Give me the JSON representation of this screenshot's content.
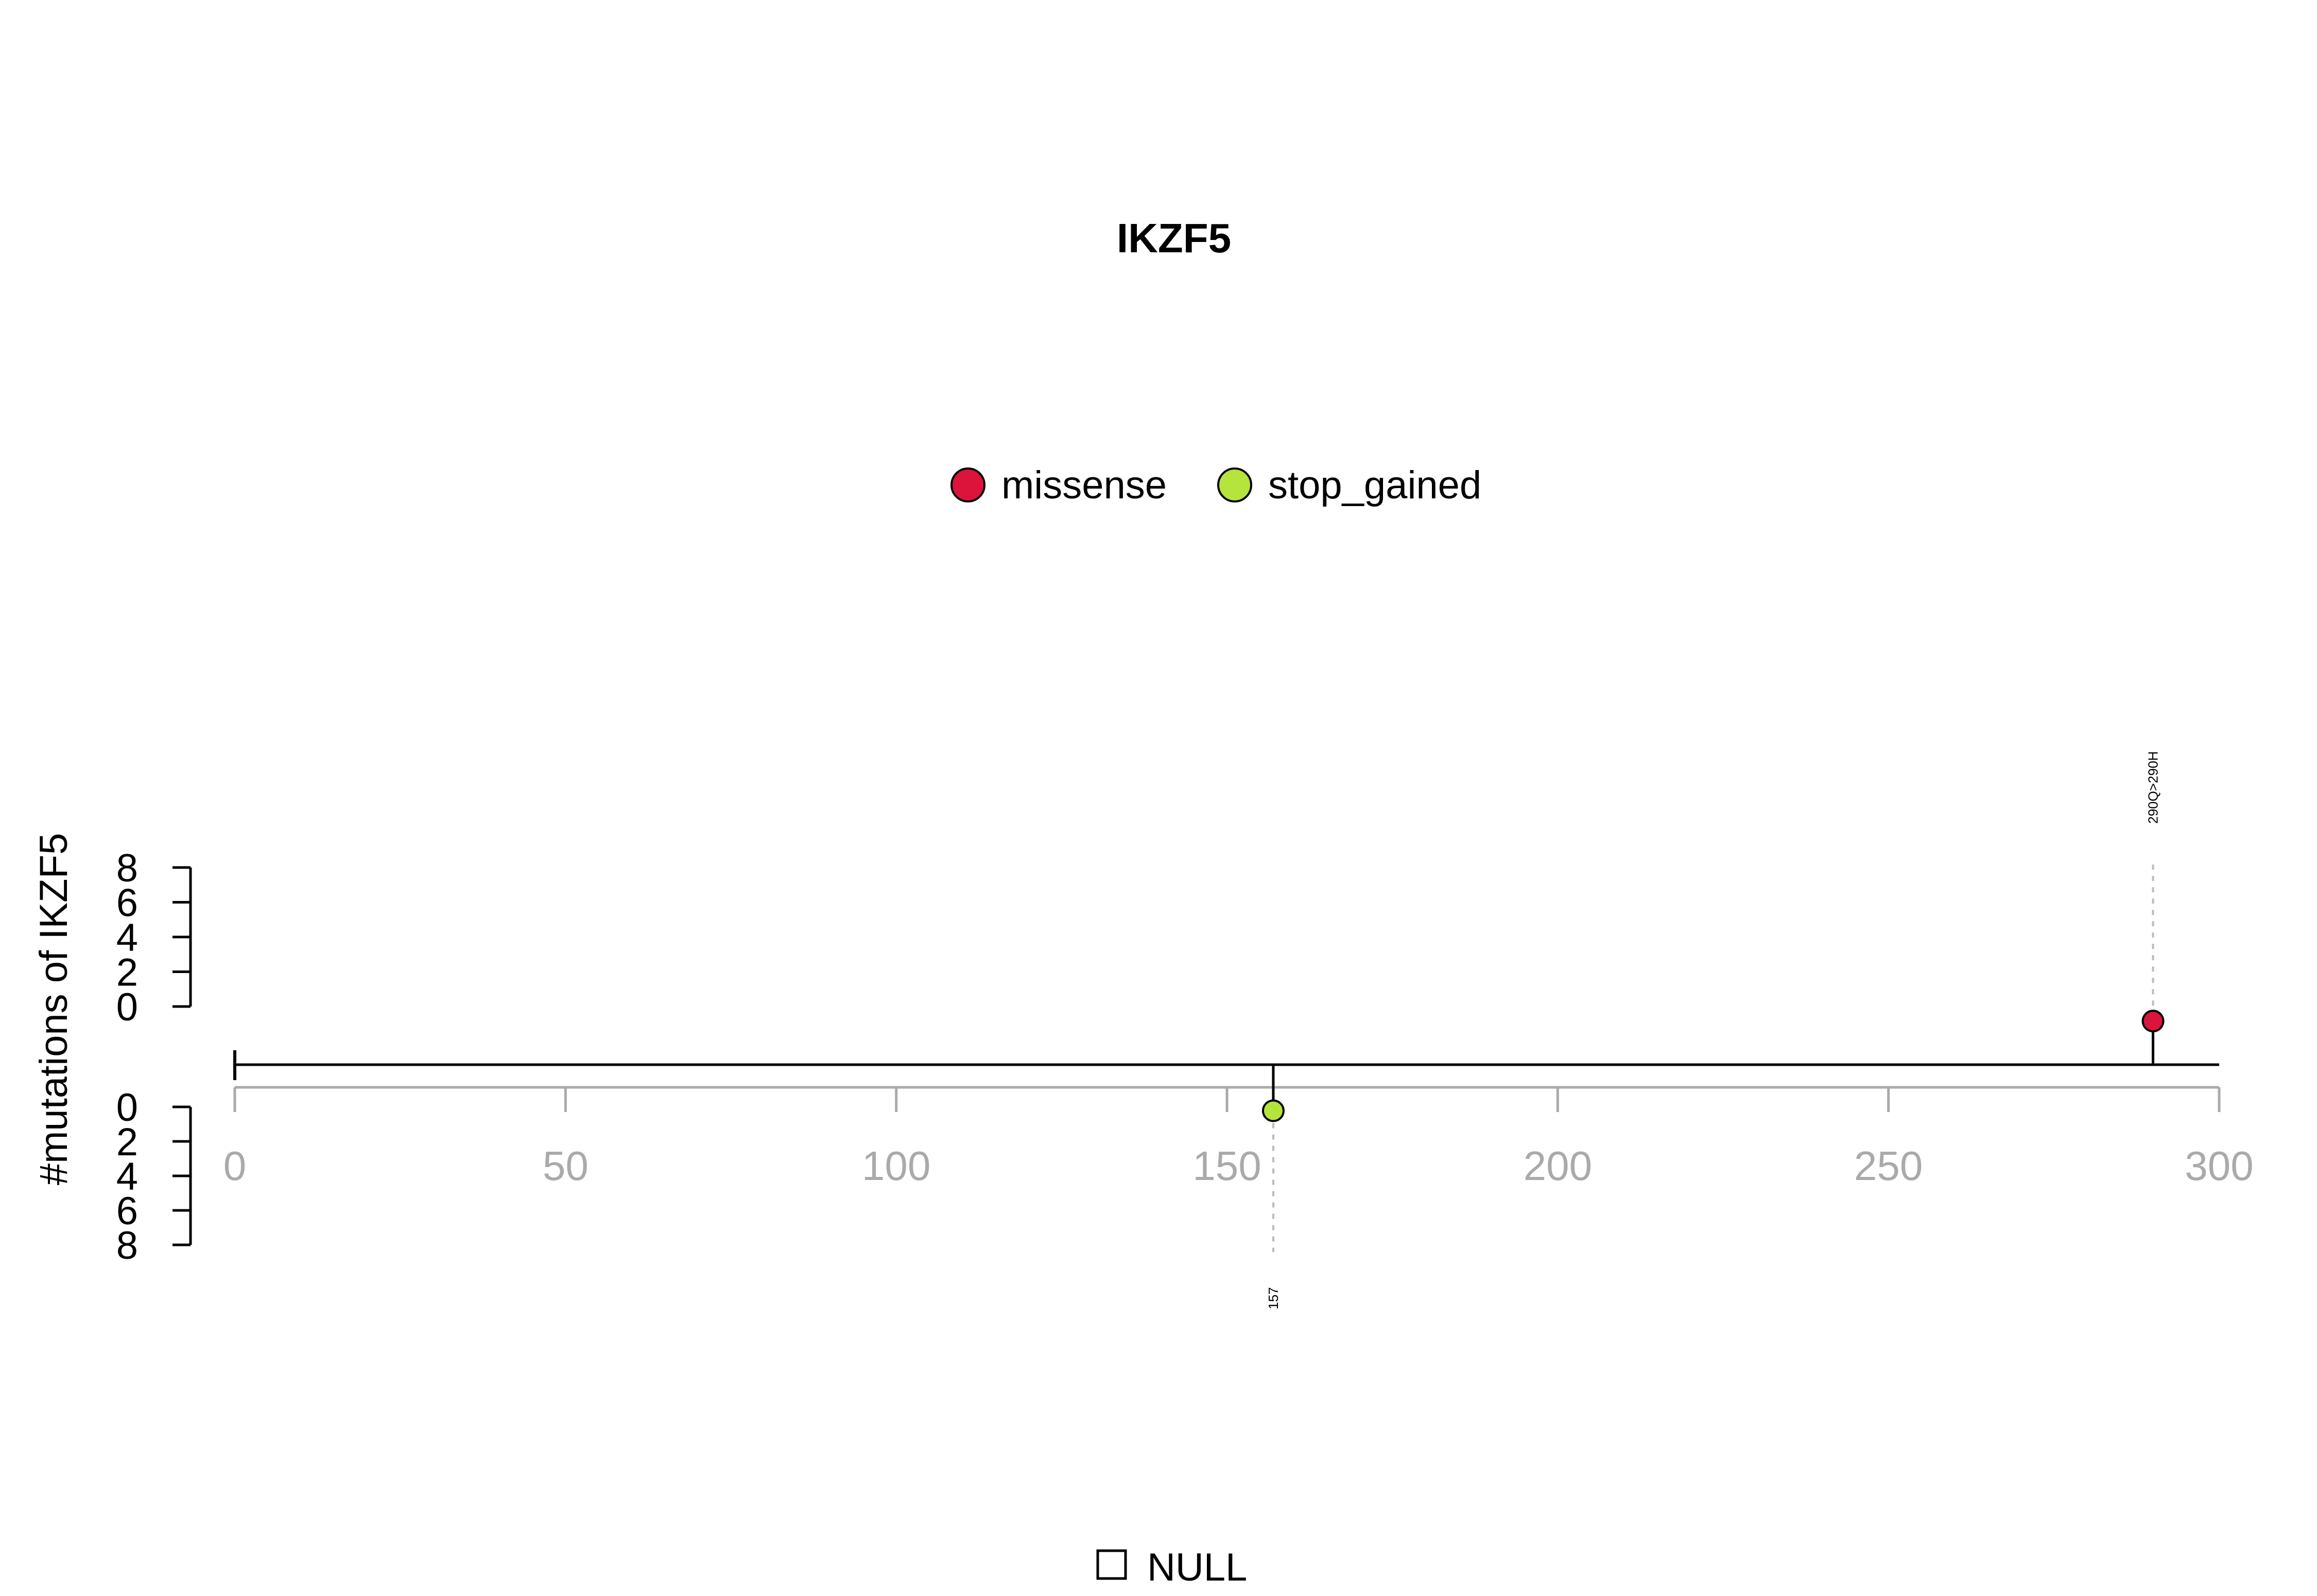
{
  "chart_data": {
    "type": "lollipop",
    "title": "IKZF5",
    "ylabel": "#mutations of IKZF5",
    "xlim": [
      0,
      300
    ],
    "x_ticks": [
      "0",
      "50",
      "100",
      "150",
      "200",
      "250",
      "300"
    ],
    "y_ticks_upper": [
      "8",
      "6",
      "4",
      "2",
      "0"
    ],
    "y_ticks_lower": [
      "0",
      "2",
      "4",
      "6",
      "8"
    ],
    "ylim": [
      0,
      8
    ],
    "legend": [
      {
        "label": "missense",
        "color": "#DC143C"
      },
      {
        "label": "stop_gained",
        "color": "#B5E43C"
      }
    ],
    "domain_legend": [
      {
        "label": "NULL",
        "symbol": "open-square"
      }
    ],
    "mutations": [
      {
        "position": 290,
        "count": 1,
        "type": "missense",
        "label": "290Q>290H",
        "side": "upper"
      },
      {
        "position": 157,
        "count": 1,
        "type": "stop_gained",
        "label": "157",
        "side": "lower"
      }
    ],
    "axis_color": "#aaaaaa",
    "grid": false
  }
}
